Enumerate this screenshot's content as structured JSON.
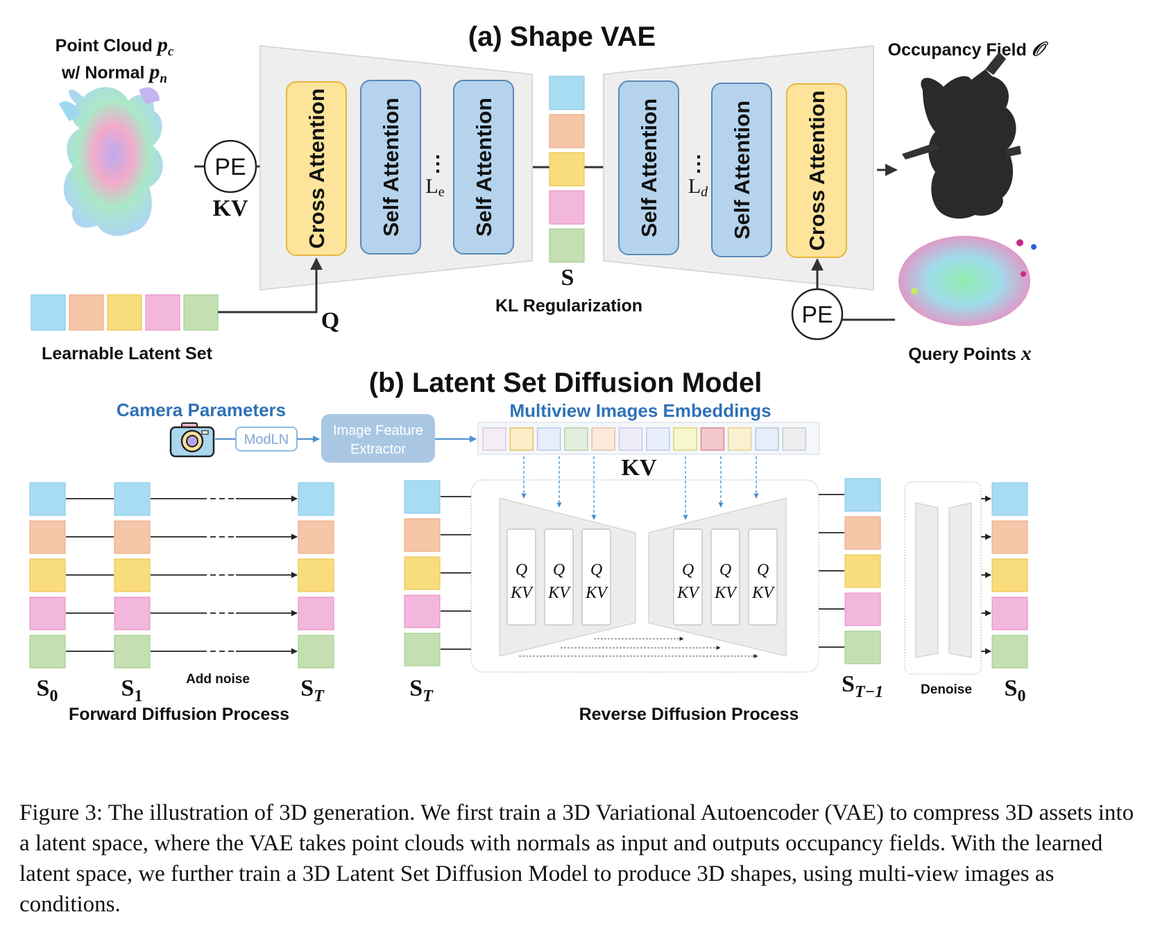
{
  "vae": {
    "title": "(a) Shape VAE",
    "input_label_line1": "Point Cloud",
    "input_sym_p": "p",
    "input_sub_c": "c",
    "input_label_line2": "w/ Normal",
    "input_sub_n": "n",
    "pe_label": "PE",
    "kv_label": "KV",
    "q_label": "Q",
    "cross_attention_label": "Cross Attention",
    "self_attention_label": "Self Attention",
    "dots": "⋮",
    "le_label": "L",
    "le_sub": "e",
    "ld_label": "L",
    "ld_sub": "d",
    "latent_symbol": "S",
    "kl_label": "KL Regularization",
    "learnable_label": "Learnable Latent Set",
    "output_label": "Occupancy Field",
    "output_symbol": "𝒪",
    "query_label": "Query Points",
    "query_symbol": "x"
  },
  "diffusion": {
    "title": "(b) Latent Set Diffusion Model",
    "camera_label": "Camera Parameters",
    "modln_label": "ModLN",
    "extractor_line1": "Image Feature",
    "extractor_line2": "Extractor",
    "embeddings_label": "Multiview Images Embeddings",
    "kv_label": "KV",
    "block_q": "Q",
    "block_kv": "KV",
    "s0": "S",
    "s0_sub": "0",
    "s1": "S",
    "s1_sub": "1",
    "st": "S",
    "st_sub": "T",
    "st1_sub": "T−1",
    "add_noise": "Add noise",
    "denoise": "Denoise",
    "forward_label": "Forward Diffusion Process",
    "reverse_label": "Reverse Diffusion Process"
  },
  "colors": {
    "latent": [
      "#a8dcf3",
      "#f5c6a8",
      "#f9dc7c",
      "#f3b6dc",
      "#c4e0b2"
    ],
    "embeddings": [
      "#f5ecf6",
      "#fbeec8",
      "#e6eef9",
      "#e2efdc",
      "#fbe9dc",
      "#eeeaf8",
      "#eaf0fb",
      "#f7f7cf",
      "#f4c8cc",
      "#fbf0cf",
      "#e6eef9",
      "#eeeeee"
    ],
    "cross_attention": "#fde49a",
    "self_attention": "#b5d3ec",
    "accent_blue": "#2f72b6",
    "extractor": "#a9c7e3"
  },
  "caption": "Figure 3:  The illustration of 3D generation. We first train a 3D Variational Autoencoder (VAE) to compress 3D assets into a latent space, where the VAE takes point clouds with normals as input and outputs occupancy fields. With the learned latent space, we further train a 3D Latent Set Diffusion Model to produce 3D shapes, using multi-view images as conditions."
}
